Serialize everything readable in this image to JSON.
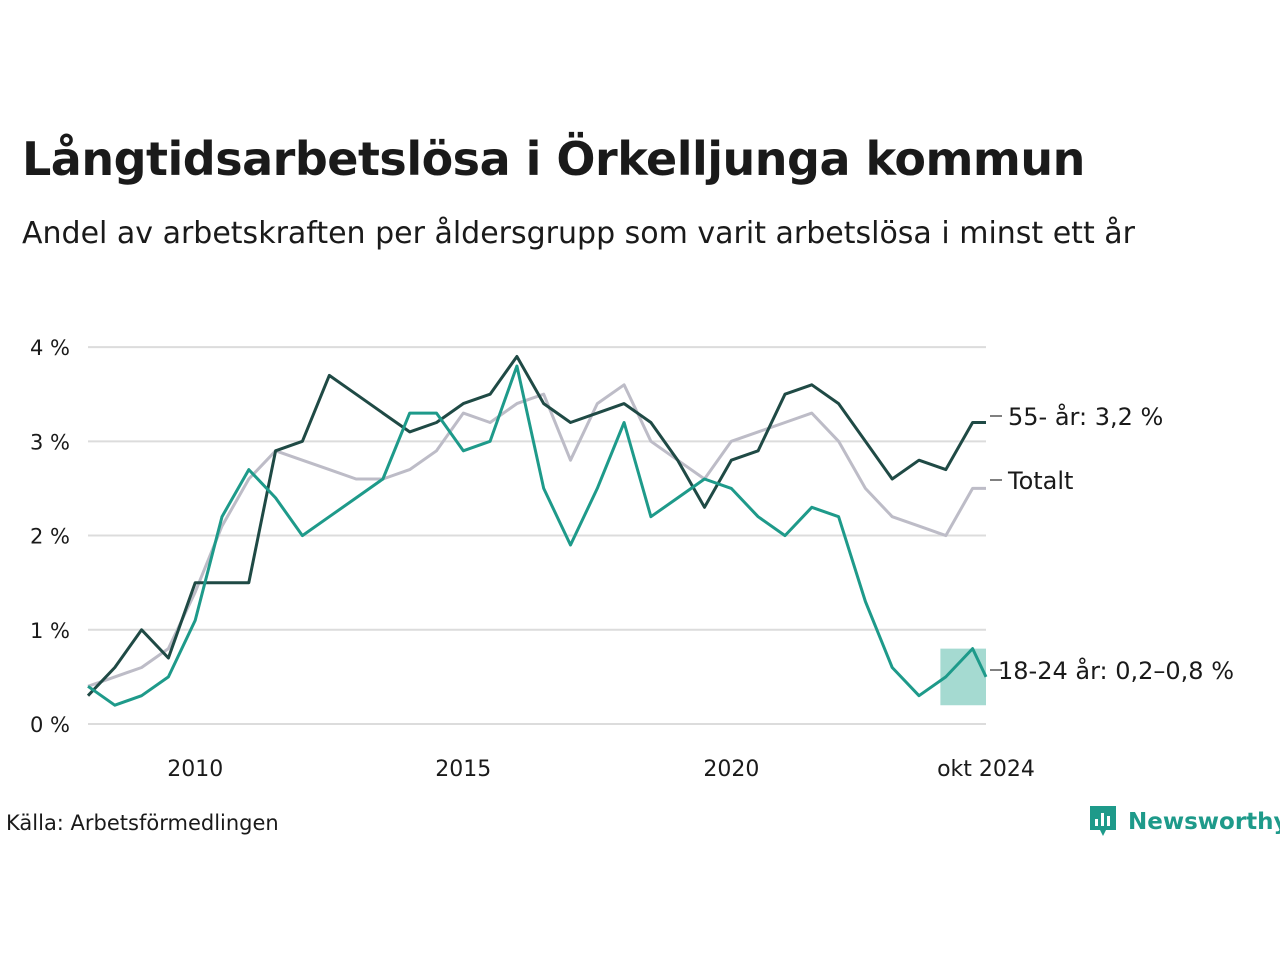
{
  "title": "Långtidsarbetslösa i Örkelljunga kommun",
  "subtitle": "Andel av arbetskraften per åldersgrupp som varit arbetslösa i minst ett år",
  "source": "Källa: Arbetsförmedlingen",
  "brand": {
    "name": "Newsworthy",
    "icon": "newsworthy-logo-icon",
    "color": "#1e9a8a"
  },
  "chart_data": {
    "type": "line",
    "title": "Långtidsarbetslösa i Örkelljunga kommun",
    "subtitle": "Andel av arbetskraften per åldersgrupp som varit arbetslösa i minst ett år",
    "x_ticks": [
      {
        "value": 2010,
        "label": "2010"
      },
      {
        "value": 2015,
        "label": "2015"
      },
      {
        "value": 2020,
        "label": "2020"
      },
      {
        "value": 2024.75,
        "label": "okt 2024"
      }
    ],
    "y_ticks": [
      {
        "value": 0,
        "label": "0 %"
      },
      {
        "value": 1,
        "label": "1 %"
      },
      {
        "value": 2,
        "label": "2 %"
      },
      {
        "value": 3,
        "label": "3 %"
      },
      {
        "value": 4,
        "label": "4 %"
      }
    ],
    "xlim": [
      2008.0,
      2024.75
    ],
    "ylim": [
      0,
      4.5
    ],
    "grid": "horizontal",
    "series": [
      {
        "name": "Totalt",
        "end_label": "Totalt",
        "color": "#bdbcc7",
        "x": [
          2008.0,
          2008.5,
          2009.0,
          2009.5,
          2010.0,
          2010.5,
          2011.0,
          2011.5,
          2012.0,
          2012.5,
          2013.0,
          2013.5,
          2014.0,
          2014.5,
          2015.0,
          2015.5,
          2016.0,
          2016.5,
          2017.0,
          2017.5,
          2018.0,
          2018.5,
          2019.0,
          2019.5,
          2020.0,
          2020.5,
          2021.0,
          2021.5,
          2022.0,
          2022.5,
          2023.0,
          2023.5,
          2024.0,
          2024.5,
          2024.75
        ],
        "values": [
          0.4,
          0.5,
          0.6,
          0.8,
          1.4,
          2.1,
          2.6,
          2.9,
          2.8,
          2.7,
          2.6,
          2.6,
          2.7,
          2.9,
          3.3,
          3.2,
          3.4,
          3.5,
          2.8,
          3.4,
          3.6,
          3.0,
          2.8,
          2.6,
          3.0,
          3.1,
          3.2,
          3.3,
          3.0,
          2.5,
          2.2,
          2.1,
          2.0,
          2.5,
          2.5
        ]
      },
      {
        "name": "55- år",
        "end_label": "55- år: 3,2 %",
        "color": "#1f4a45",
        "x": [
          2008.0,
          2008.5,
          2009.0,
          2009.5,
          2010.0,
          2010.5,
          2011.0,
          2011.5,
          2012.0,
          2012.5,
          2013.0,
          2013.5,
          2014.0,
          2014.5,
          2015.0,
          2015.5,
          2016.0,
          2016.5,
          2017.0,
          2017.5,
          2018.0,
          2018.5,
          2019.0,
          2019.5,
          2020.0,
          2020.5,
          2021.0,
          2021.5,
          2022.0,
          2022.5,
          2023.0,
          2023.5,
          2024.0,
          2024.5,
          2024.75
        ],
        "values": [
          0.3,
          0.6,
          1.0,
          0.7,
          1.5,
          1.5,
          1.5,
          2.9,
          3.0,
          3.7,
          3.5,
          3.3,
          3.1,
          3.2,
          3.4,
          3.5,
          3.9,
          3.4,
          3.2,
          3.3,
          3.4,
          3.2,
          2.8,
          2.3,
          2.8,
          2.9,
          3.5,
          3.6,
          3.4,
          3.0,
          2.6,
          2.8,
          2.7,
          3.2,
          3.2
        ]
      },
      {
        "name": "18-24 år",
        "end_label": "18-24 år: 0,2–0,8 %",
        "color": "#1e9a8a",
        "band_color": "#8fd1c5",
        "x": [
          2008.0,
          2008.5,
          2009.0,
          2009.5,
          2010.0,
          2010.5,
          2011.0,
          2011.5,
          2012.0,
          2012.5,
          2013.0,
          2013.5,
          2014.0,
          2014.5,
          2015.0,
          2015.5,
          2016.0,
          2016.5,
          2017.0,
          2017.5,
          2018.0,
          2018.5,
          2019.0,
          2019.5,
          2020.0,
          2020.5,
          2021.0,
          2021.5,
          2022.0,
          2022.5,
          2023.0,
          2023.5,
          2024.0,
          2024.5,
          2024.75
        ],
        "values": [
          0.4,
          0.2,
          0.3,
          0.5,
          1.1,
          2.2,
          2.7,
          2.4,
          2.0,
          2.2,
          2.4,
          2.6,
          3.3,
          3.3,
          2.9,
          3.0,
          3.8,
          2.5,
          1.9,
          2.5,
          3.2,
          2.2,
          2.4,
          2.6,
          2.5,
          2.2,
          2.0,
          2.3,
          2.2,
          1.3,
          0.6,
          0.3,
          0.5,
          0.8,
          0.5
        ],
        "band": {
          "x": [
            2023.9,
            2024.75
          ],
          "lower": [
            0.2,
            0.2
          ],
          "upper": [
            0.8,
            0.8
          ]
        }
      }
    ]
  }
}
